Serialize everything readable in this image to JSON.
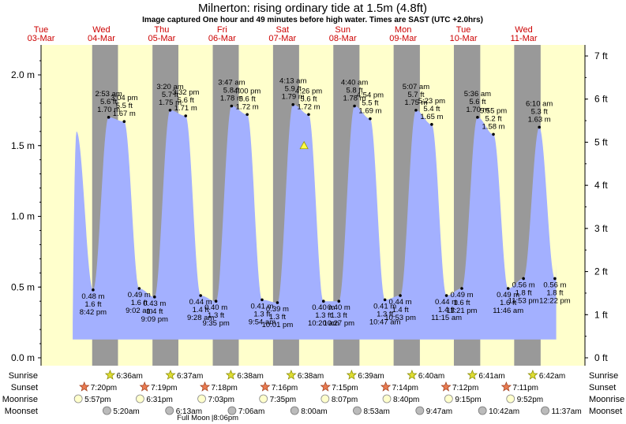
{
  "title": "Milnerton: rising  ordinary tide at 1.5m (4.8ft)",
  "subtitle": "Image captured One hour and 49 minutes before high water. Times are SAST (UTC +2.0hrs)",
  "colors": {
    "day": "#ffffcc",
    "night": "#999999",
    "water": "#a3b0ff",
    "marker": "#ffff44",
    "sun": "#cccc00",
    "sunset": "#e06666"
  },
  "days": [
    {
      "dow": "Tue",
      "date": "03-Mar",
      "dow_color": "#cc0000"
    },
    {
      "dow": "Wed",
      "date": "04-Mar",
      "dow_color": "#cc0000"
    },
    {
      "dow": "Thu",
      "date": "05-Mar",
      "dow_color": "#cc0000"
    },
    {
      "dow": "Fri",
      "date": "06-Mar",
      "dow_color": "#cc0000"
    },
    {
      "dow": "Sat",
      "date": "07-Mar",
      "dow_color": "#cc0000"
    },
    {
      "dow": "Sun",
      "date": "08-Mar",
      "dow_color": "#cc0000"
    },
    {
      "dow": "Mon",
      "date": "09-Mar",
      "dow_color": "#cc0000"
    },
    {
      "dow": "Tue",
      "date": "10-Mar",
      "dow_color": "#cc0000"
    },
    {
      "dow": "Wed",
      "date": "11-Mar",
      "dow_color": "#cc0000"
    }
  ],
  "chart_data": {
    "type": "area",
    "y_left_label_unit": "m",
    "y_right_label_unit": "ft",
    "ylim_m": [
      -0.04,
      2.15
    ],
    "y_left_ticks": [
      "0.0 m",
      "0.5 m",
      "1.0 m",
      "1.5 m",
      "2.0 m"
    ],
    "y_left_tick_values": [
      0,
      0.5,
      1.0,
      1.5,
      2.0
    ],
    "y_right_ticks": [
      "0 ft",
      "1 ft",
      "2 ft",
      "3 ft",
      "4 ft",
      "5 ft",
      "6 ft",
      "7 ft"
    ],
    "y_right_tick_values_ft": [
      0,
      1,
      2,
      3,
      4,
      5,
      6,
      7
    ],
    "time_range_hours": [
      0,
      216
    ],
    "start_level_m": 1.6,
    "end_level_m": 0.66,
    "sun": [
      {
        "rise": 6.6,
        "set": 20.33
      },
      {
        "rise": 30.6,
        "set": 44.32
      },
      {
        "rise": 54.62,
        "set": 68.3
      },
      {
        "rise": 78.63,
        "set": 92.27
      },
      {
        "rise": 102.63,
        "set": 116.25
      },
      {
        "rise": 126.65,
        "set": 140.23
      },
      {
        "rise": 150.67,
        "set": 164.2
      },
      {
        "rise": 174.68,
        "set": 188.18
      },
      {
        "rise": 198.7,
        "set": 212.17
      }
    ],
    "tides": [
      {
        "t": 20.7,
        "h": 0.48,
        "type": "low",
        "lines": [
          "0.48 m",
          "1.6 ft",
          "8:42 pm"
        ]
      },
      {
        "t": 26.88,
        "h": 1.7,
        "type": "high",
        "lines": [
          "2:53 am",
          "5.6 ft",
          "1.70 m"
        ]
      },
      {
        "t": 33.07,
        "h": 1.67,
        "type": "high",
        "lines": [
          "3:04 pm",
          "5.5 ft",
          "1.67 m"
        ]
      },
      {
        "t": 39.03,
        "h": 0.49,
        "type": "low",
        "lines": [
          "0.49 m",
          "1.6 ft",
          "9:02 am"
        ]
      },
      {
        "t": 45.15,
        "h": 0.43,
        "type": "low",
        "lines": [
          "0.43 m",
          "1.4 ft",
          "9:09 pm"
        ]
      },
      {
        "t": 51.33,
        "h": 1.75,
        "type": "high",
        "lines": [
          "3:20 am",
          "5.7 ft",
          "1.75 m"
        ]
      },
      {
        "t": 57.53,
        "h": 1.71,
        "type": "high",
        "lines": [
          "3:32 pm",
          "5.6 ft",
          "1.71 m"
        ]
      },
      {
        "t": 63.47,
        "h": 0.44,
        "type": "low",
        "lines": [
          "0.44 m",
          "1.4 ft",
          "9:28 am"
        ]
      },
      {
        "t": 69.58,
        "h": 0.4,
        "type": "low",
        "lines": [
          "0.40 m",
          "1.3 ft",
          "9:35 pm"
        ]
      },
      {
        "t": 75.78,
        "h": 1.78,
        "type": "high",
        "lines": [
          "3:47 am",
          "5.8 ft",
          "1.78 m"
        ]
      },
      {
        "t": 82.0,
        "h": 1.72,
        "type": "high",
        "lines": [
          "4:00 pm",
          "5.6 ft",
          "1.72 m"
        ]
      },
      {
        "t": 87.9,
        "h": 0.41,
        "type": "low",
        "lines": [
          "0.41 m",
          "1.3 ft",
          "9:54 am"
        ]
      },
      {
        "t": 94.02,
        "h": 0.39,
        "type": "low",
        "lines": [
          "0.39 m",
          "1.3 ft",
          "10:01 pm"
        ]
      },
      {
        "t": 100.22,
        "h": 1.79,
        "type": "high",
        "lines": [
          "4:13 am",
          "5.9 ft",
          "1.79 m"
        ]
      },
      {
        "t": 106.43,
        "h": 1.72,
        "type": "high",
        "lines": [
          "4:26 pm",
          "5.6 ft",
          "1.72 m"
        ]
      },
      {
        "t": 112.33,
        "h": 0.4,
        "type": "low",
        "lines": [
          "0.40 m",
          "1.3 ft",
          "10:20 am"
        ]
      },
      {
        "t": 118.45,
        "h": 0.4,
        "type": "low",
        "lines": [
          "0.40 m",
          "1.3 ft",
          "10:27 pm"
        ]
      },
      {
        "t": 124.67,
        "h": 1.78,
        "type": "high",
        "lines": [
          "4:40 am",
          "5.8 ft",
          "1.78 m"
        ]
      },
      {
        "t": 130.9,
        "h": 1.69,
        "type": "high",
        "lines": [
          "4:54 pm",
          "5.5 ft",
          "1.69 m"
        ]
      },
      {
        "t": 136.78,
        "h": 0.41,
        "type": "low",
        "lines": [
          "0.41 m",
          "1.3 ft",
          "10:47 am"
        ]
      },
      {
        "t": 142.88,
        "h": 0.44,
        "type": "low",
        "lines": [
          "0.44 m",
          "1.4 ft",
          "10:53 pm"
        ]
      },
      {
        "t": 149.12,
        "h": 1.75,
        "type": "high",
        "lines": [
          "5:07 am",
          "5.7 ft",
          "1.75 m"
        ]
      },
      {
        "t": 155.38,
        "h": 1.65,
        "type": "high",
        "lines": [
          "5:23 pm",
          "5.4 ft",
          "1.65 m"
        ]
      },
      {
        "t": 161.25,
        "h": 0.44,
        "type": "low",
        "lines": [
          "0.44 m",
          "1.4 ft",
          "11:15 am"
        ]
      },
      {
        "t": 167.35,
        "h": 0.49,
        "type": "low",
        "lines": [
          "0.49 m",
          "1.6 ft",
          "11:21 pm"
        ]
      },
      {
        "t": 173.6,
        "h": 1.7,
        "type": "high",
        "lines": [
          "5:36 am",
          "5.6 ft",
          "1.70 m"
        ]
      },
      {
        "t": 179.92,
        "h": 1.58,
        "type": "high",
        "lines": [
          "5:55 pm",
          "5.2 ft",
          "1.58 m"
        ]
      },
      {
        "t": 185.77,
        "h": 0.49,
        "type": "low",
        "lines": [
          "0.49 m",
          "1.6 ft",
          "11:46 am"
        ]
      },
      {
        "t": 191.88,
        "h": 0.56,
        "type": "low",
        "lines": [
          "0.56 m",
          "1.8 ft",
          "11:53 pm"
        ]
      },
      {
        "t": 198.17,
        "h": 1.63,
        "type": "high",
        "lines": [
          "6:10 am",
          "5.3 ft",
          "1.63 m"
        ]
      },
      {
        "t": 204.37,
        "h": 0.56,
        "type": "low",
        "lines": [
          "0.56 m",
          "1.8 ft",
          "12:22 pm"
        ]
      }
    ],
    "current_marker": {
      "t": 104.6,
      "h": 1.5
    }
  },
  "rows": {
    "labels": [
      "Sunrise",
      "Sunset",
      "Moonrise",
      "Moonset"
    ],
    "sunrise": [
      {
        "t": 30.6,
        "text": "6:36am"
      },
      {
        "t": 54.62,
        "text": "6:37am"
      },
      {
        "t": 78.63,
        "text": "6:38am"
      },
      {
        "t": 102.63,
        "text": "6:38am"
      },
      {
        "t": 126.65,
        "text": "6:39am"
      },
      {
        "t": 150.67,
        "text": "6:40am"
      },
      {
        "t": 174.68,
        "text": "6:41am"
      },
      {
        "t": 198.7,
        "text": "6:42am"
      }
    ],
    "sunset": [
      {
        "t": 20.33,
        "text": "7:20pm"
      },
      {
        "t": 44.32,
        "text": "7:19pm"
      },
      {
        "t": 68.3,
        "text": "7:18pm"
      },
      {
        "t": 92.27,
        "text": "7:16pm"
      },
      {
        "t": 116.25,
        "text": "7:15pm"
      },
      {
        "t": 140.23,
        "text": "7:14pm"
      },
      {
        "t": 164.2,
        "text": "7:12pm"
      },
      {
        "t": 188.18,
        "text": "7:11pm"
      }
    ],
    "moonrise": [
      {
        "t": 17.95,
        "text": "5:57pm"
      },
      {
        "t": 42.52,
        "text": "6:31pm"
      },
      {
        "t": 67.05,
        "text": "7:03pm"
      },
      {
        "t": 91.58,
        "text": "7:35pm"
      },
      {
        "t": 116.12,
        "text": "8:07pm"
      },
      {
        "t": 140.67,
        "text": "8:40pm"
      },
      {
        "t": 165.25,
        "text": "9:15pm"
      },
      {
        "t": 189.87,
        "text": "9:52pm"
      }
    ],
    "moonset": [
      {
        "t": 29.33,
        "text": "5:20am"
      },
      {
        "t": 54.22,
        "text": "6:13am"
      },
      {
        "t": 79.1,
        "text": "7:06am"
      },
      {
        "t": 104.0,
        "text": "8:00am"
      },
      {
        "t": 128.88,
        "text": "8:53am"
      },
      {
        "t": 153.78,
        "text": "9:47am"
      },
      {
        "t": 178.7,
        "text": "10:42am"
      },
      {
        "t": 203.62,
        "text": "11:37am"
      }
    ],
    "full_moon": {
      "t": 68.1,
      "label": "Full Moon",
      "time": "|8:06pm"
    }
  }
}
